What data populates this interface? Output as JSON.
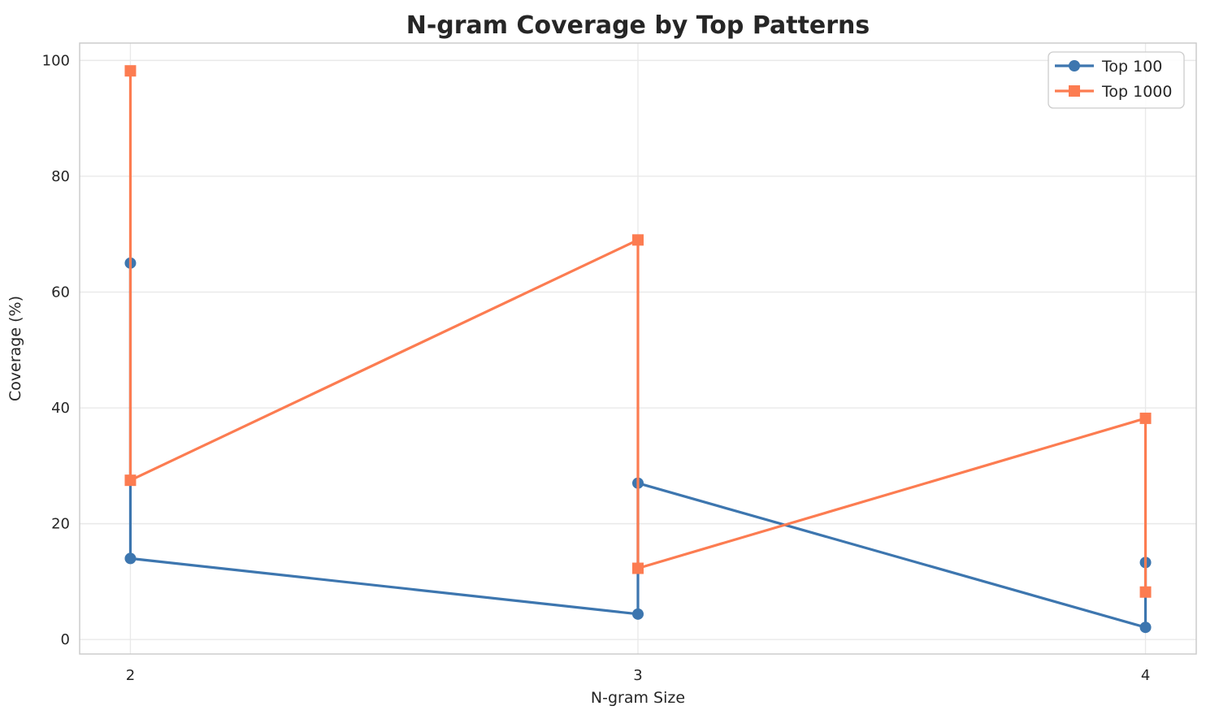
{
  "chart": {
    "title": "N-gram Coverage by Top Patterns",
    "xlabel": "N-gram Size",
    "ylabel": "Coverage (%)"
  },
  "legend": {
    "items": [
      {
        "label": "Top 100",
        "color": "#3d76af",
        "marker": "circle"
      },
      {
        "label": "Top 1000",
        "color": "#fc7c51",
        "marker": "square"
      }
    ]
  },
  "style": {
    "grid_color": "#e9e9e9",
    "spine_color": "#c9c9c9",
    "text_color": "#262626",
    "background": "#ffffff",
    "line_width": 3.2
  },
  "chart_data": {
    "type": "line",
    "title": "N-gram Coverage by Top Patterns",
    "xlabel": "N-gram Size",
    "ylabel": "Coverage (%)",
    "x_ticks": [
      2,
      3,
      4
    ],
    "y_ticks": [
      0,
      20,
      40,
      60,
      80,
      100
    ],
    "xlim": [
      1.9,
      4.1
    ],
    "ylim": [
      -2.5,
      103
    ],
    "grid": true,
    "legend_position": "upper right",
    "series": [
      {
        "name": "Top 100",
        "color": "#3d76af",
        "marker": "circle",
        "points": [
          [
            2,
            65
          ],
          [
            2,
            14
          ],
          [
            3,
            4.4
          ],
          [
            3,
            27
          ],
          [
            4,
            2.1
          ],
          [
            4,
            13.3
          ]
        ]
      },
      {
        "name": "Top 1000",
        "color": "#fc7c51",
        "marker": "square",
        "points": [
          [
            2,
            98.2
          ],
          [
            2,
            27.5
          ],
          [
            3,
            69
          ],
          [
            3,
            12.3
          ],
          [
            4,
            38.2
          ],
          [
            4,
            8.2
          ]
        ]
      }
    ]
  }
}
